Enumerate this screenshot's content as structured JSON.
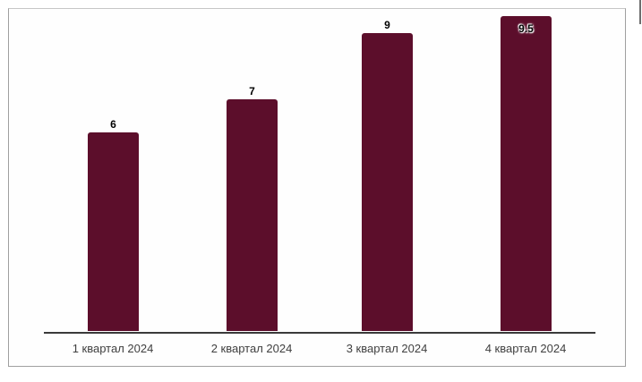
{
  "chart_data": {
    "type": "bar",
    "categories": [
      "1 квартал 2024",
      "2 квартал 2024",
      "3 квартал 2024",
      "4 квартал 2024"
    ],
    "values": [
      6,
      7,
      9,
      9.5
    ],
    "value_labels": [
      "6",
      "7",
      "9",
      "9.5"
    ],
    "title": "",
    "xlabel": "",
    "ylabel": "",
    "ylim": [
      0,
      9.5
    ],
    "grid": false,
    "legend": "none",
    "bar_color": "#5c0e2b",
    "axis_color": "#3a3a3a",
    "value_label_position": [
      "above",
      "above",
      "above",
      "inside"
    ]
  },
  "frame": {
    "border_color": "#a0a0a0"
  }
}
